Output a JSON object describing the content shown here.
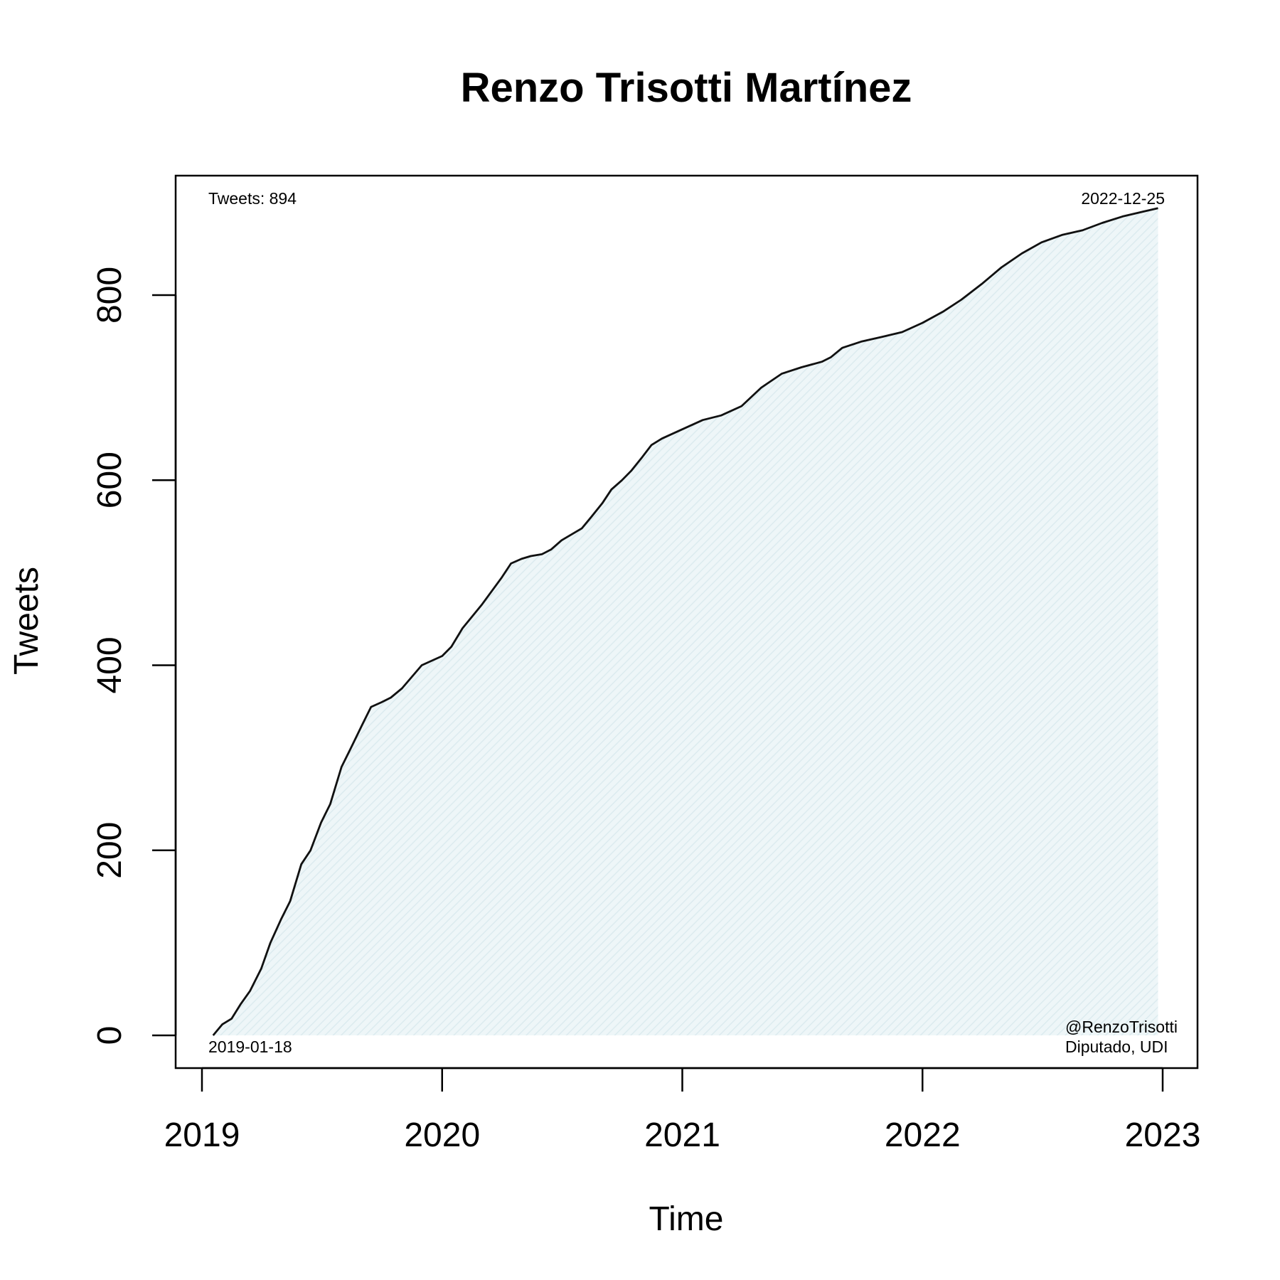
{
  "chart_data": {
    "type": "area",
    "title": "Renzo Trisotti Martínez",
    "xlabel": "Time",
    "ylabel": "Tweets",
    "xlim": [
      2019,
      2023
    ],
    "ylim": [
      0,
      894
    ],
    "x_ticks": [
      "2019",
      "2020",
      "2021",
      "2022",
      "2023"
    ],
    "y_ticks": [
      "0",
      "200",
      "400",
      "600",
      "800"
    ],
    "grid": false,
    "legend": "none",
    "colors": {
      "line": "#111111",
      "fill": "#e8f3f6",
      "hatch": "#dcebef"
    },
    "annotations": {
      "total": "Tweets: 894",
      "start_date": "2019-01-18",
      "end_date": "2022-12-25",
      "handle": "@RenzoTrisotti",
      "role": "Diputado, UDI"
    },
    "series": [
      {
        "x": [
          "2019-01-18",
          "2019-02-01",
          "2019-02-15",
          "2019-03-01",
          "2019-03-15",
          "2019-04-01",
          "2019-04-15",
          "2019-05-01",
          "2019-05-15",
          "2019-06-01",
          "2019-06-15",
          "2019-07-01",
          "2019-07-15",
          "2019-08-01",
          "2019-08-15",
          "2019-09-01",
          "2019-09-15",
          "2019-10-01",
          "2019-10-15",
          "2019-11-01",
          "2019-12-01",
          "2020-01-01",
          "2020-01-15",
          "2020-02-01",
          "2020-03-01",
          "2020-04-01",
          "2020-04-15",
          "2020-05-01",
          "2020-05-15",
          "2020-06-01",
          "2020-06-15",
          "2020-07-01",
          "2020-08-01",
          "2020-08-15",
          "2020-09-01",
          "2020-09-15",
          "2020-10-01",
          "2020-10-15",
          "2020-11-01",
          "2020-11-15",
          "2020-12-01",
          "2021-01-01",
          "2021-02-01",
          "2021-03-01",
          "2021-04-01",
          "2021-05-01",
          "2021-06-01",
          "2021-07-01",
          "2021-08-01",
          "2021-08-15",
          "2021-09-01",
          "2021-10-01",
          "2021-11-01",
          "2021-12-01",
          "2022-01-01",
          "2022-02-01",
          "2022-03-01",
          "2022-04-01",
          "2022-05-01",
          "2022-06-01",
          "2022-07-01",
          "2022-08-01",
          "2022-09-01",
          "2022-10-01",
          "2022-11-01",
          "2022-12-01",
          "2022-12-25"
        ],
        "y": [
          0,
          12,
          18,
          34,
          48,
          72,
          100,
          125,
          145,
          185,
          200,
          230,
          250,
          290,
          310,
          335,
          355,
          360,
          365,
          375,
          400,
          410,
          420,
          440,
          465,
          495,
          510,
          515,
          518,
          520,
          525,
          535,
          548,
          560,
          575,
          590,
          600,
          610,
          625,
          638,
          645,
          655,
          665,
          670,
          680,
          700,
          715,
          722,
          728,
          733,
          743,
          750,
          755,
          760,
          770,
          782,
          795,
          812,
          830,
          845,
          857,
          865,
          870,
          878,
          885,
          890,
          894
        ]
      }
    ]
  }
}
